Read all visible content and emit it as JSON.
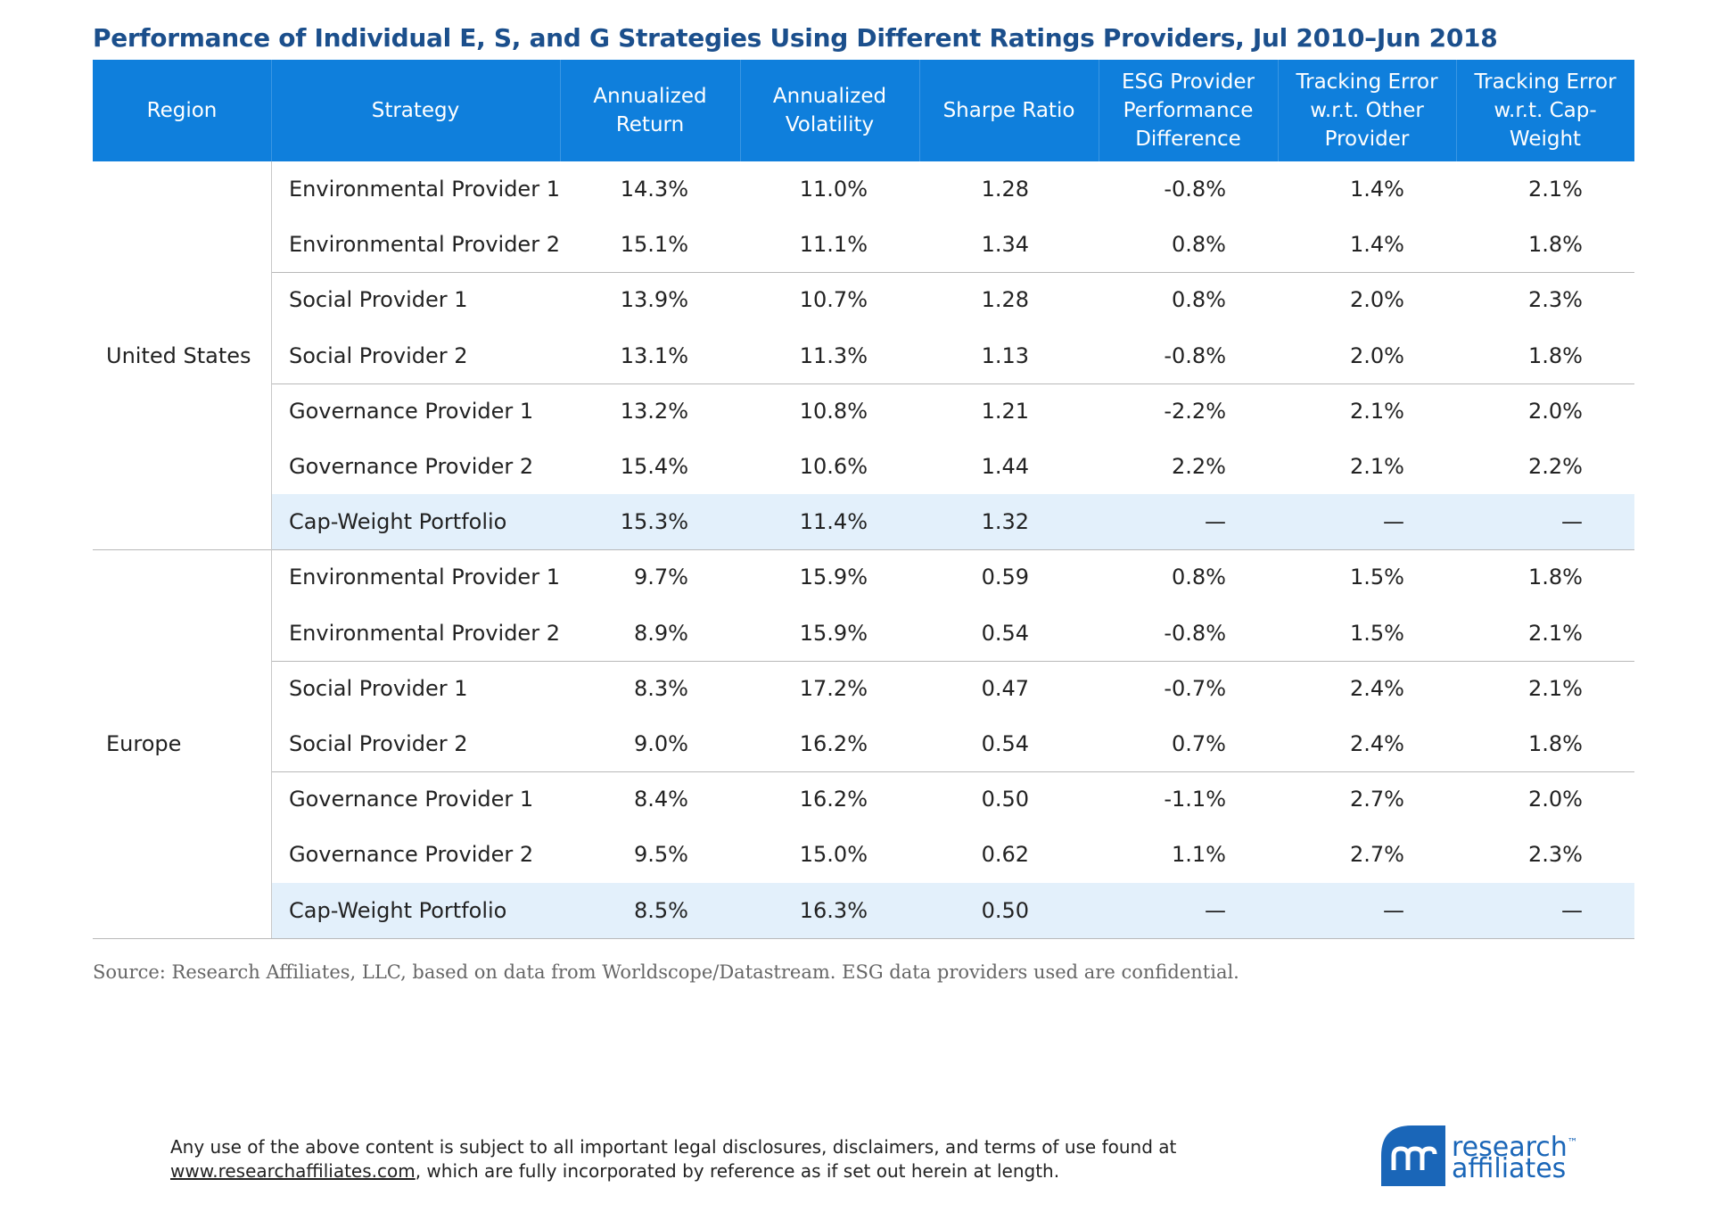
{
  "title": "Performance of Individual E, S, and G Strategies Using Different Ratings Providers, Jul 2010–Jun 2018",
  "table": {
    "columns": [
      "Region",
      "Strategy",
      "Annualized Return",
      "Annualized Volatility",
      "Sharpe Ratio",
      "ESG Provider Performance Difference",
      "Tracking Error w.r.t. Other Provider",
      "Tracking Error w.r.t. Cap-Weight"
    ],
    "groups": [
      {
        "region": "United States",
        "rows": [
          [
            "Environmental Provider 1",
            "14.3%",
            "11.0%",
            "1.28",
            "-0.8%",
            "1.4%",
            "2.1%"
          ],
          [
            "Environmental Provider 2",
            "15.1%",
            "11.1%",
            "1.34",
            "0.8%",
            "1.4%",
            "1.8%"
          ],
          [
            "Social Provider 1",
            "13.9%",
            "10.7%",
            "1.28",
            "0.8%",
            "2.0%",
            "2.3%"
          ],
          [
            "Social Provider 2",
            "13.1%",
            "11.3%",
            "1.13",
            "-0.8%",
            "2.0%",
            "1.8%"
          ],
          [
            "Governance Provider 1",
            "13.2%",
            "10.8%",
            "1.21",
            "-2.2%",
            "2.1%",
            "2.0%"
          ],
          [
            "Governance Provider 2",
            "15.4%",
            "10.6%",
            "1.44",
            "2.2%",
            "2.1%",
            "2.2%"
          ],
          [
            "Cap-Weight Portfolio",
            "15.3%",
            "11.4%",
            "1.32",
            "—",
            "—",
            "—"
          ]
        ]
      },
      {
        "region": "Europe",
        "rows": [
          [
            "Environmental Provider 1",
            "9.7%",
            "15.9%",
            "0.59",
            "0.8%",
            "1.5%",
            "1.8%"
          ],
          [
            "Environmental Provider 2",
            "8.9%",
            "15.9%",
            "0.54",
            "-0.8%",
            "1.5%",
            "2.1%"
          ],
          [
            "Social Provider 1",
            "8.3%",
            "17.2%",
            "0.47",
            "-0.7%",
            "2.4%",
            "2.1%"
          ],
          [
            "Social Provider 2",
            "9.0%",
            "16.2%",
            "0.54",
            "0.7%",
            "2.4%",
            "1.8%"
          ],
          [
            "Governance Provider 1",
            "8.4%",
            "16.2%",
            "0.50",
            "-1.1%",
            "2.7%",
            "2.0%"
          ],
          [
            "Governance Provider 2",
            "9.5%",
            "15.0%",
            "0.62",
            "1.1%",
            "2.7%",
            "2.3%"
          ],
          [
            "Cap-Weight Portfolio",
            "8.5%",
            "16.3%",
            "0.50",
            "—",
            "—",
            "—"
          ]
        ]
      }
    ]
  },
  "source": "Source: Research Affiliates, LLC, based on data from Worldscope/Datastream. ESG data providers used are confidential.",
  "footer": {
    "line1": "Any use of the above content is subject to all important legal disclosures, disclaimers, and terms of use found at",
    "link": "www.researchaffiliates.com",
    "line2": ", which are fully incorporated by reference as if set out herein at length."
  },
  "logo": {
    "line1": "research",
    "trademark": "™",
    "line2": "affiliates"
  }
}
